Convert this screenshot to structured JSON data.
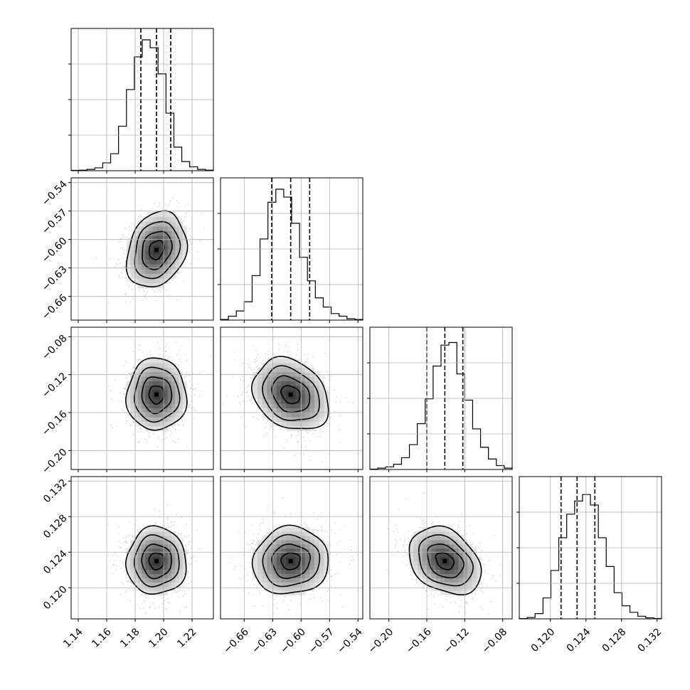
{
  "chart_data": {
    "type": "corner",
    "grid": true,
    "parameters": [
      {
        "median": 1.195,
        "q16": 1.184,
        "q84": 1.205,
        "range": [
          1.135,
          1.235
        ],
        "ticks": [
          1.14,
          1.16,
          1.18,
          1.2,
          1.22
        ],
        "tick_labels": [
          "1.14",
          "1.16",
          "1.18",
          "1.20",
          "1.22"
        ]
      },
      {
        "median": -0.611,
        "q16": -0.631,
        "q84": -0.591,
        "range": [
          -0.685,
          -0.535
        ],
        "ticks": [
          -0.66,
          -0.63,
          -0.6,
          -0.57,
          -0.54
        ],
        "tick_labels": [
          "−0.66",
          "−0.63",
          "−0.60",
          "−0.57",
          "−0.54"
        ]
      },
      {
        "median": -0.141,
        "q16": -0.16,
        "q84": -0.122,
        "range": [
          -0.22,
          -0.07
        ],
        "ticks": [
          -0.2,
          -0.16,
          -0.12,
          -0.08
        ],
        "tick_labels": [
          "−0.20",
          "−0.16",
          "−0.12",
          "−0.08"
        ]
      },
      {
        "median": 0.123,
        "q16": 0.1212,
        "q84": 0.125,
        "range": [
          0.1165,
          0.1325
        ],
        "ticks": [
          0.12,
          0.124,
          0.128,
          0.132
        ],
        "tick_labels": [
          "0.120",
          "0.124",
          "0.128",
          "0.132"
        ]
      }
    ],
    "histograms": [
      [
        0.003,
        0.004,
        0.01,
        0.022,
        0.06,
        0.13,
        0.34,
        0.62,
        0.87,
        1.0,
        0.94,
        0.74,
        0.44,
        0.18,
        0.07,
        0.03,
        0.01,
        0.004
      ],
      [
        0.005,
        0.03,
        0.07,
        0.14,
        0.34,
        0.62,
        0.9,
        1.0,
        0.94,
        0.74,
        0.48,
        0.3,
        0.17,
        0.1,
        0.05,
        0.03,
        0.01,
        0.005
      ],
      [
        0.003,
        0.01,
        0.02,
        0.04,
        0.09,
        0.19,
        0.35,
        0.54,
        0.79,
        0.95,
        0.97,
        0.73,
        0.53,
        0.31,
        0.17,
        0.08,
        0.03,
        0.01
      ],
      [
        0.002,
        0.01,
        0.04,
        0.16,
        0.37,
        0.62,
        0.8,
        0.9,
        0.95,
        0.87,
        0.62,
        0.4,
        0.2,
        0.1,
        0.05,
        0.02,
        0.008,
        0.003
      ]
    ],
    "correlations": [
      [
        1,
        0.22,
        0.0,
        0.0
      ],
      [
        0.22,
        1,
        -0.25,
        0.05
      ],
      [
        0.0,
        -0.25,
        1,
        -0.3
      ],
      [
        0.0,
        0.05,
        -0.3,
        1
      ]
    ],
    "contour_levels_sigma": [
      0.5,
      1,
      1.5,
      2
    ]
  }
}
